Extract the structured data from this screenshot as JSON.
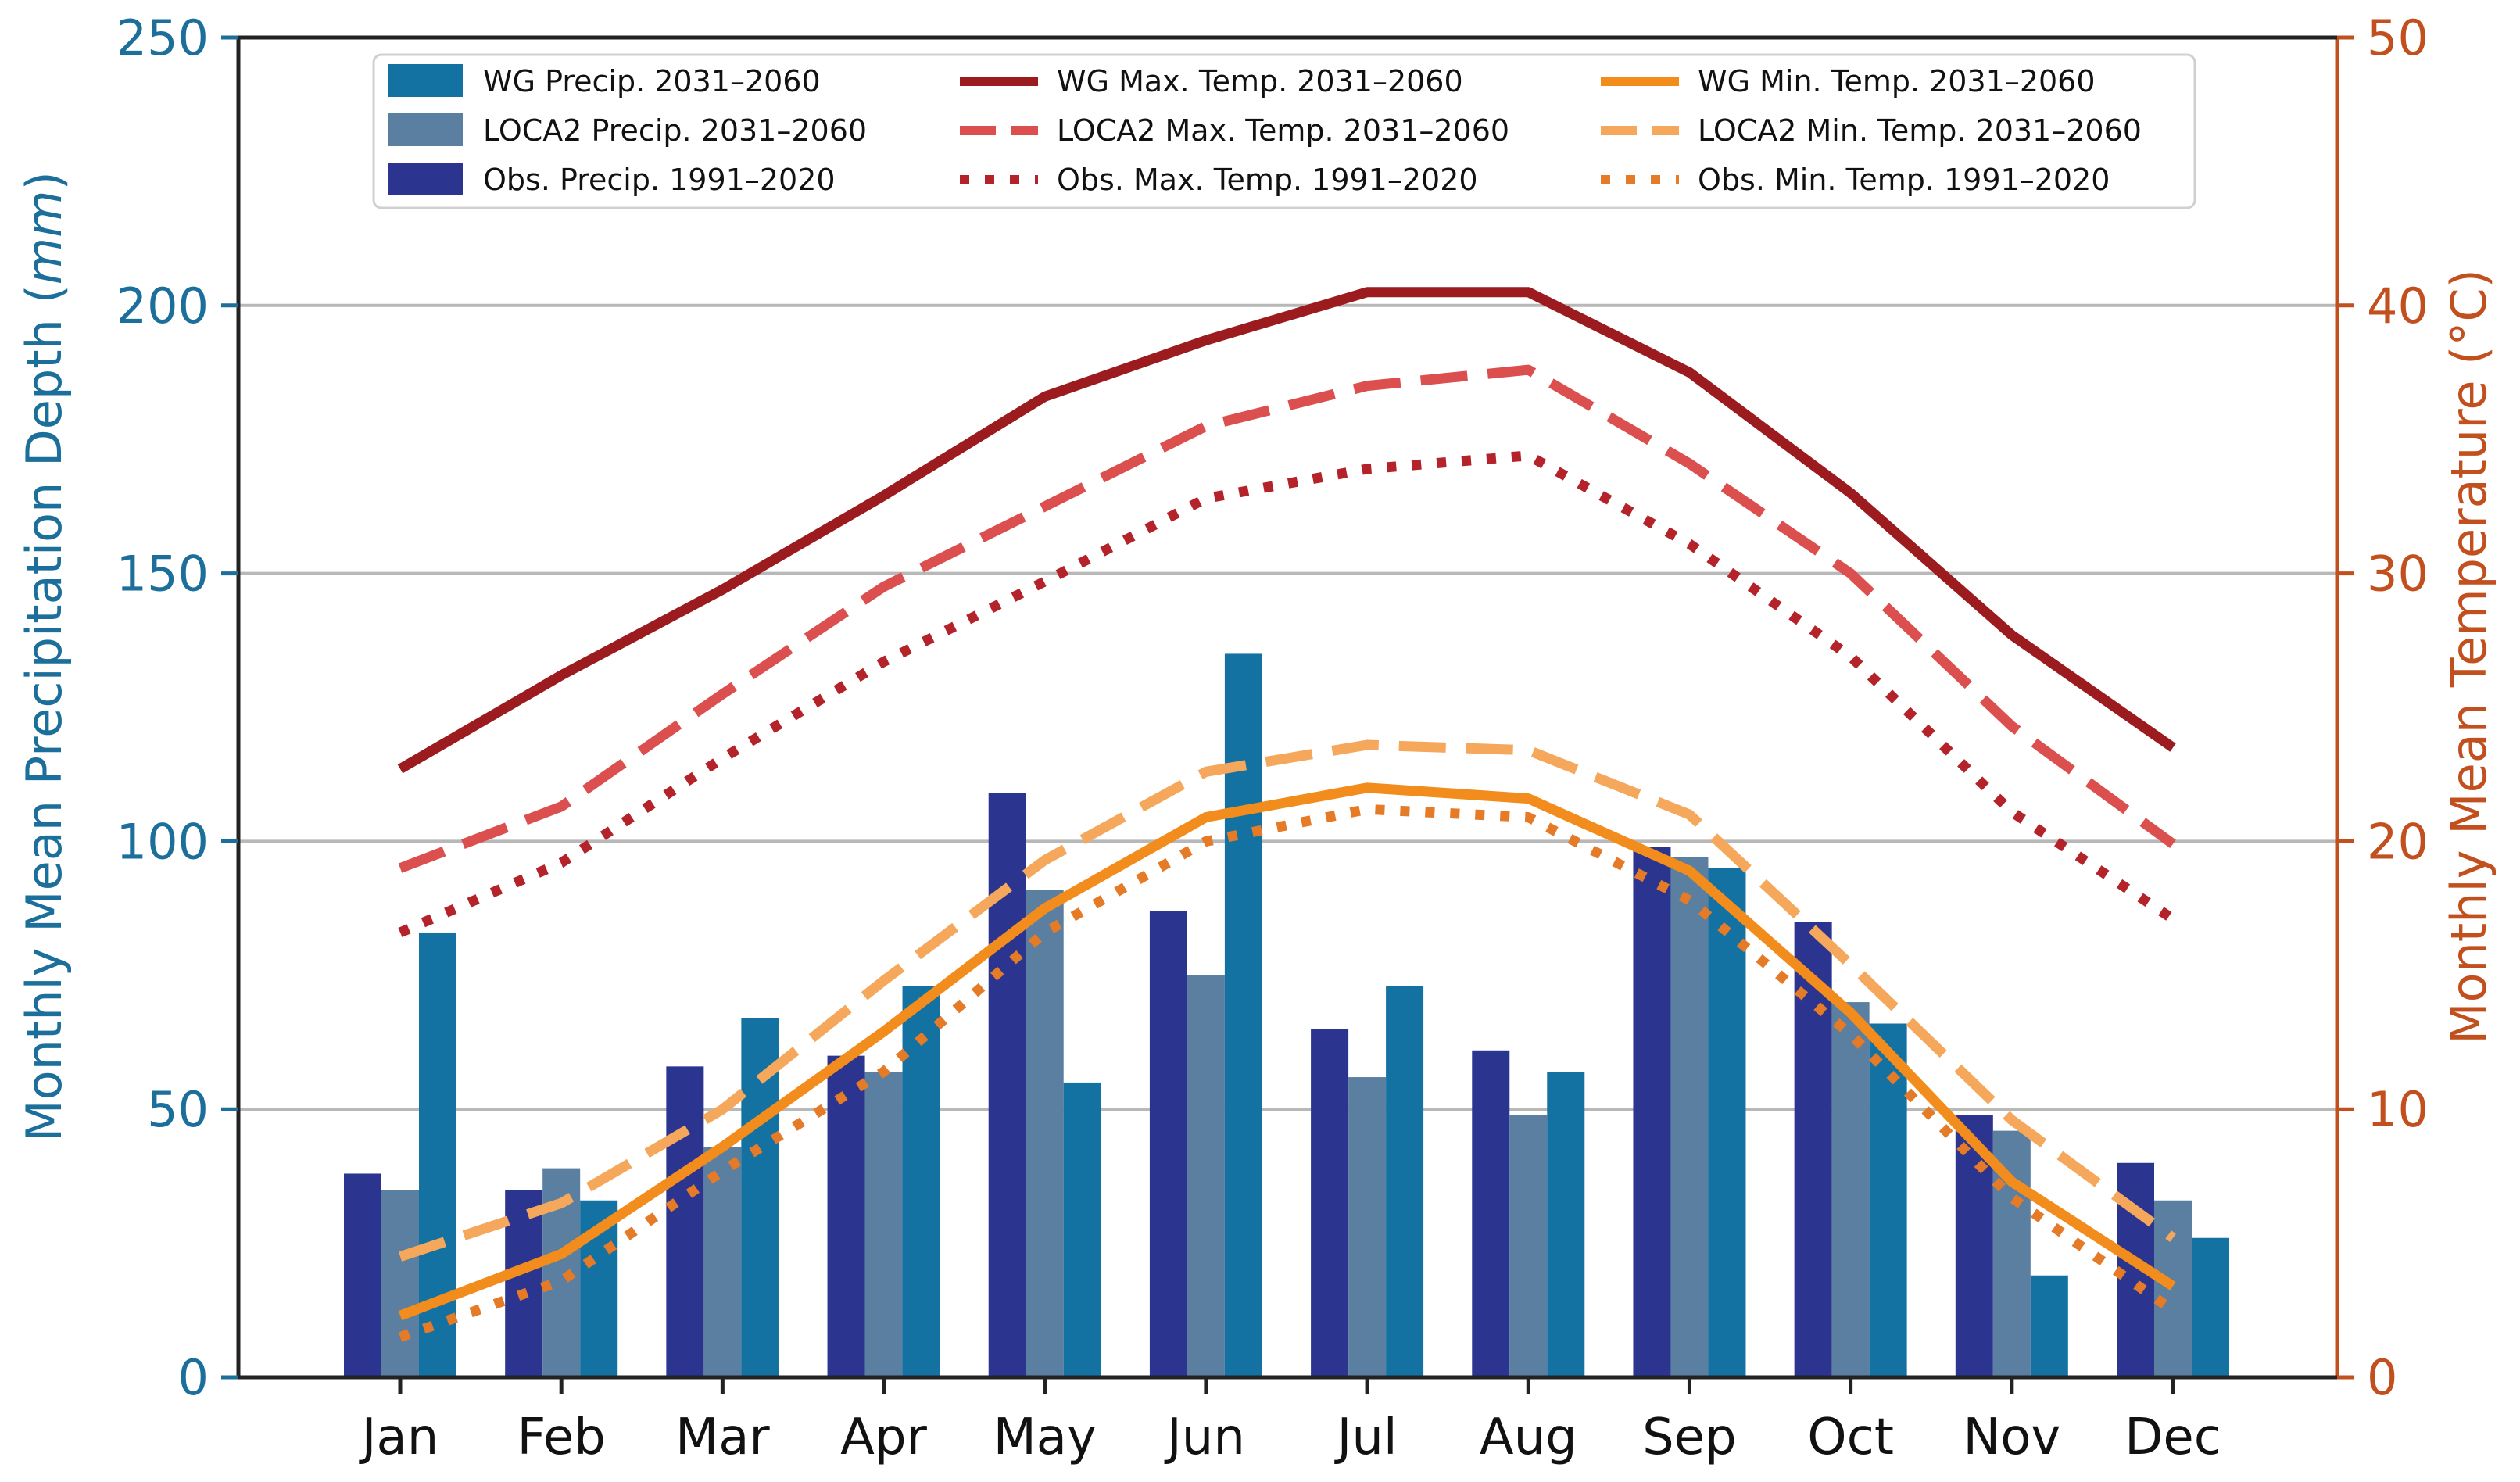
{
  "chart_data": {
    "type": "bar+line",
    "title": "",
    "categories": [
      "Jan",
      "Feb",
      "Mar",
      "Apr",
      "May",
      "Jun",
      "Jul",
      "Aug",
      "Sep",
      "Oct",
      "Nov",
      "Dec"
    ],
    "y_left": {
      "label_prefix": "Monthly Mean Precipitation Depth (",
      "label_unit": "mm",
      "label_suffix": ")",
      "range": [
        0,
        250
      ],
      "ticks": [
        0,
        50,
        100,
        150,
        200,
        250
      ],
      "color": "#1b6f9a"
    },
    "y_right": {
      "label": "Monthly Mean Temperature (°C)",
      "range": [
        0,
        50
      ],
      "ticks": [
        0,
        10,
        20,
        30,
        40,
        50
      ],
      "color": "#c2501f"
    },
    "grid": "horizontal",
    "legend_position": "top-center",
    "bar_series": [
      {
        "name": "Obs. Precip. 1991–2020",
        "color": "#2b3590",
        "values": [
          38,
          35,
          58,
          60,
          109,
          87,
          65,
          61,
          99,
          85,
          49,
          40
        ]
      },
      {
        "name": "LOCA2 Precip. 2031–2060",
        "color": "#5a7fa0",
        "values": [
          35,
          39,
          43,
          57,
          91,
          75,
          56,
          49,
          97,
          70,
          46,
          33
        ]
      },
      {
        "name": "WG Precip. 2031–2060",
        "color": "#1472a3",
        "values": [
          83,
          33,
          67,
          73,
          55,
          135,
          73,
          57,
          95,
          66,
          19,
          26
        ]
      }
    ],
    "line_series": [
      {
        "name": "WG Max. Temp. 2031–2060",
        "color": "#9b1b1f",
        "style": "solid",
        "values": [
          22.7,
          26.2,
          29.4,
          32.9,
          36.6,
          38.7,
          40.5,
          40.5,
          37.5,
          33.0,
          27.7,
          23.5
        ]
      },
      {
        "name": "LOCA2 Max. Temp. 2031–2060",
        "color": "#db4f4f",
        "style": "dashed",
        "values": [
          19.0,
          21.3,
          25.5,
          29.5,
          32.5,
          35.5,
          37.0,
          37.6,
          34.1,
          30.0,
          24.3,
          19.9
        ]
      },
      {
        "name": "Obs. Max. Temp. 1991–2020",
        "color": "#b5232a",
        "style": "dotted",
        "values": [
          16.6,
          19.2,
          23.1,
          26.7,
          29.7,
          32.8,
          33.9,
          34.4,
          31.1,
          26.9,
          21.1,
          17.1
        ]
      },
      {
        "name": "WG Min. Temp. 2031–2060",
        "color": "#f28c1c",
        "style": "solid",
        "values": [
          2.3,
          4.6,
          8.6,
          12.9,
          17.5,
          20.9,
          22.0,
          21.6,
          18.9,
          13.6,
          7.3,
          3.4
        ]
      },
      {
        "name": "LOCA2 Min. Temp. 2031–2060",
        "color": "#f5a85c",
        "style": "dashed",
        "values": [
          4.5,
          6.5,
          10.0,
          14.8,
          19.3,
          22.6,
          23.6,
          23.4,
          21.0,
          15.4,
          9.6,
          5.2
        ]
      },
      {
        "name": "Obs. Min. Temp. 1991–2020",
        "color": "#e57a27",
        "style": "dotted",
        "values": [
          1.5,
          3.6,
          7.7,
          11.4,
          16.6,
          20.0,
          21.2,
          20.9,
          17.8,
          12.8,
          6.7,
          2.5
        ]
      }
    ]
  }
}
